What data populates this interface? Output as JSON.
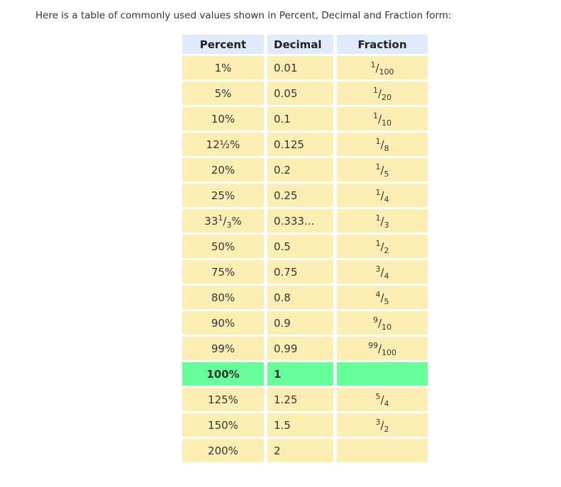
{
  "intro": "Here is a table of commonly used values shown in Percent, Decimal and Fraction form:",
  "colors": {
    "text": "#333333",
    "header_bg": "#dfeafa",
    "row_bg": "#fdeeb3",
    "highlight_bg": "#66ff99",
    "header_text": "#222222"
  },
  "table": {
    "headers": [
      "Percent",
      "Decimal",
      "Fraction"
    ],
    "rows": [
      {
        "percent": [
          [
            "t",
            "1%"
          ]
        ],
        "decimal": "0.01",
        "fraction": {
          "num": "1",
          "den": "100"
        },
        "highlight": false
      },
      {
        "percent": [
          [
            "t",
            "5%"
          ]
        ],
        "decimal": "0.05",
        "fraction": {
          "num": "1",
          "den": "20"
        },
        "highlight": false
      },
      {
        "percent": [
          [
            "t",
            "10%"
          ]
        ],
        "decimal": "0.1",
        "fraction": {
          "num": "1",
          "den": "10"
        },
        "highlight": false
      },
      {
        "percent": [
          [
            "t",
            "12½%"
          ]
        ],
        "decimal": "0.125",
        "fraction": {
          "num": "1",
          "den": "8"
        },
        "highlight": false
      },
      {
        "percent": [
          [
            "t",
            "20%"
          ]
        ],
        "decimal": "0.2",
        "fraction": {
          "num": "1",
          "den": "5"
        },
        "highlight": false
      },
      {
        "percent": [
          [
            "t",
            "25%"
          ]
        ],
        "decimal": "0.25",
        "fraction": {
          "num": "1",
          "den": "4"
        },
        "highlight": false
      },
      {
        "percent": [
          [
            "t",
            "33"
          ],
          [
            "sup",
            "1"
          ],
          [
            "t",
            "/"
          ],
          [
            "sub",
            "3"
          ],
          [
            "t",
            "%"
          ]
        ],
        "decimal": "0.333...",
        "fraction": {
          "num": "1",
          "den": "3"
        },
        "highlight": false
      },
      {
        "percent": [
          [
            "t",
            "50%"
          ]
        ],
        "decimal": "0.5",
        "fraction": {
          "num": "1",
          "den": "2"
        },
        "highlight": false
      },
      {
        "percent": [
          [
            "t",
            "75%"
          ]
        ],
        "decimal": "0.75",
        "fraction": {
          "num": "3",
          "den": "4"
        },
        "highlight": false
      },
      {
        "percent": [
          [
            "t",
            "80%"
          ]
        ],
        "decimal": "0.8",
        "fraction": {
          "num": "4",
          "den": "5"
        },
        "highlight": false
      },
      {
        "percent": [
          [
            "t",
            "90%"
          ]
        ],
        "decimal": "0.9",
        "fraction": {
          "num": "9",
          "den": "10"
        },
        "highlight": false
      },
      {
        "percent": [
          [
            "t",
            "99%"
          ]
        ],
        "decimal": "0.99",
        "fraction": {
          "num": "99",
          "den": "100"
        },
        "highlight": false
      },
      {
        "percent": [
          [
            "t",
            "100%"
          ]
        ],
        "decimal": "1",
        "fraction": null,
        "highlight": true
      },
      {
        "percent": [
          [
            "t",
            "125%"
          ]
        ],
        "decimal": "1.25",
        "fraction": {
          "num": "5",
          "den": "4"
        },
        "highlight": false
      },
      {
        "percent": [
          [
            "t",
            "150%"
          ]
        ],
        "decimal": "1.5",
        "fraction": {
          "num": "3",
          "den": "2"
        },
        "highlight": false
      },
      {
        "percent": [
          [
            "t",
            "200%"
          ]
        ],
        "decimal": "2",
        "fraction": null,
        "highlight": false
      }
    ]
  }
}
